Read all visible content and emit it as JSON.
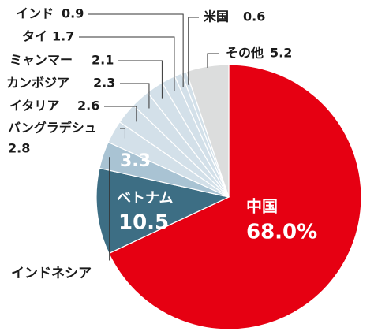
{
  "chart_data": {
    "type": "pie",
    "categories": [
      "中国",
      "ベトナム",
      "インドネシア",
      "バングラデシュ",
      "イタリア",
      "カンボジア",
      "ミャンマー",
      "タイ",
      "インド",
      "米国",
      "その他"
    ],
    "values": [
      68.0,
      10.5,
      3.3,
      2.8,
      2.6,
      2.3,
      2.1,
      1.7,
      0.9,
      0.6,
      5.2
    ],
    "value_labels": [
      "68.0%",
      "10.5",
      "3.3",
      "2.8",
      "2.6",
      "2.3",
      "2.1",
      "1.7",
      "0.9",
      "0.6",
      "5.2"
    ],
    "colors": [
      "#e60012",
      "#3d6e84",
      "#a9c3d3",
      "#d3e0e9",
      "#d3e0e9",
      "#d3e0e9",
      "#d3e0e9",
      "#d3e0e9",
      "#d3e0e9",
      "#d3e0e9",
      "#dcdddd"
    ]
  }
}
